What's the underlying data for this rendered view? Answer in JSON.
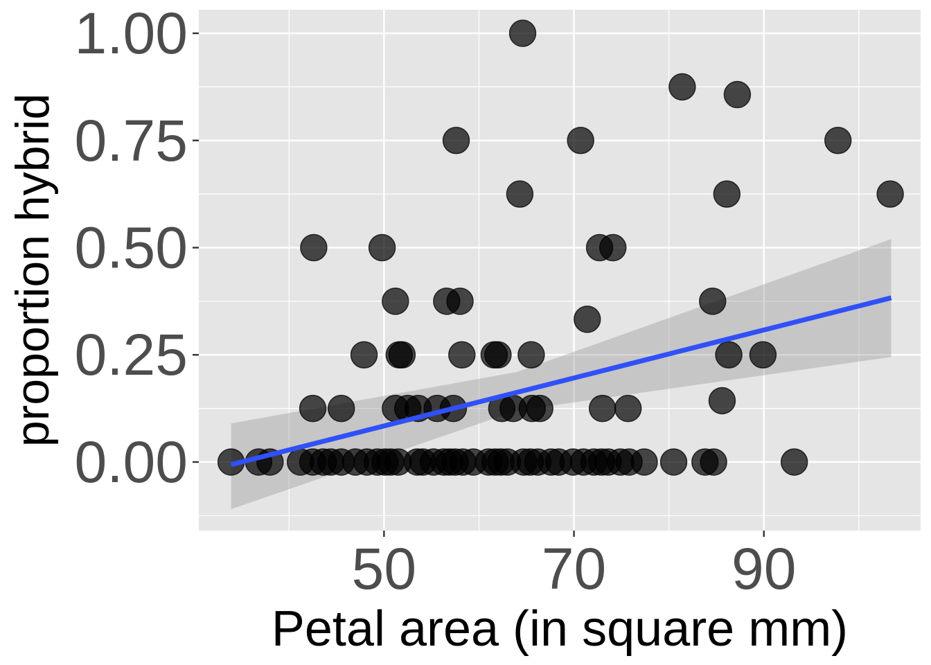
{
  "chart_data": {
    "type": "scatter",
    "title": "",
    "xlabel": "Petal area (in square mm)",
    "ylabel": "proportion hybrid",
    "xlim": [
      30.5,
      106.5
    ],
    "ylim": [
      -0.16,
      1.055
    ],
    "x_ticks": [
      50,
      70,
      90
    ],
    "x_tick_labels": [
      "50",
      "70",
      "90"
    ],
    "x_minor_ticks": [
      40,
      60,
      80,
      100
    ],
    "y_ticks": [
      0,
      0.25,
      0.5,
      0.75,
      1.0
    ],
    "y_tick_labels": [
      "0.00",
      "0.25",
      "0.50",
      "0.75",
      "1.00"
    ],
    "y_minor_ticks": [
      -0.125,
      0.125,
      0.375,
      0.625,
      0.875
    ],
    "grid": true,
    "panel_color": "#e5e5e5",
    "grid_color": "#ffffff",
    "point_color": "#000000",
    "point_opacity": 0.7,
    "fit_line_color": "#3050f8",
    "ribbon_color": "#999999",
    "fit": {
      "x": [
        33.9,
        103.4
      ],
      "y": [
        -0.006,
        0.383
      ],
      "ribbon": [
        {
          "x": 33.9,
          "low": -0.11,
          "high": 0.09
        },
        {
          "x": 64.0,
          "low": 0.12,
          "high": 0.21
        },
        {
          "x": 103.4,
          "low": 0.245,
          "high": 0.52
        }
      ]
    },
    "points": [
      {
        "x": 33.9,
        "y": 0
      },
      {
        "x": 36.8,
        "y": 0
      },
      {
        "x": 38.0,
        "y": 0
      },
      {
        "x": 41.2,
        "y": 0
      },
      {
        "x": 42.5,
        "y": 0
      },
      {
        "x": 43.6,
        "y": 0
      },
      {
        "x": 44.4,
        "y": 0
      },
      {
        "x": 45.5,
        "y": 0
      },
      {
        "x": 47.0,
        "y": 0
      },
      {
        "x": 48.2,
        "y": 0
      },
      {
        "x": 49.3,
        "y": 0
      },
      {
        "x": 50.1,
        "y": 0
      },
      {
        "x": 50.7,
        "y": 0
      },
      {
        "x": 51.5,
        "y": 0
      },
      {
        "x": 53.5,
        "y": 0
      },
      {
        "x": 54.1,
        "y": 0
      },
      {
        "x": 55.2,
        "y": 0
      },
      {
        "x": 56.3,
        "y": 0
      },
      {
        "x": 56.9,
        "y": 0
      },
      {
        "x": 57.5,
        "y": 0
      },
      {
        "x": 58.3,
        "y": 0
      },
      {
        "x": 59.4,
        "y": 0
      },
      {
        "x": 61.0,
        "y": 0
      },
      {
        "x": 61.7,
        "y": 0
      },
      {
        "x": 62.3,
        "y": 0
      },
      {
        "x": 63.0,
        "y": 0
      },
      {
        "x": 64.7,
        "y": 0
      },
      {
        "x": 65.4,
        "y": 0
      },
      {
        "x": 66.2,
        "y": 0
      },
      {
        "x": 67.6,
        "y": 0
      },
      {
        "x": 68.4,
        "y": 0
      },
      {
        "x": 69.9,
        "y": 0
      },
      {
        "x": 71.0,
        "y": 0
      },
      {
        "x": 72.1,
        "y": 0
      },
      {
        "x": 72.9,
        "y": 0
      },
      {
        "x": 73.6,
        "y": 0
      },
      {
        "x": 74.9,
        "y": 0
      },
      {
        "x": 75.8,
        "y": 0
      },
      {
        "x": 77.4,
        "y": 0
      },
      {
        "x": 80.5,
        "y": 0
      },
      {
        "x": 83.8,
        "y": 0
      },
      {
        "x": 84.7,
        "y": 0
      },
      {
        "x": 93.2,
        "y": 0
      },
      {
        "x": 42.5,
        "y": 0.125
      },
      {
        "x": 45.5,
        "y": 0.125
      },
      {
        "x": 51.2,
        "y": 0.125
      },
      {
        "x": 52.5,
        "y": 0.125
      },
      {
        "x": 53.6,
        "y": 0.125
      },
      {
        "x": 55.6,
        "y": 0.125
      },
      {
        "x": 57.3,
        "y": 0.125
      },
      {
        "x": 62.4,
        "y": 0.125
      },
      {
        "x": 63.6,
        "y": 0.125
      },
      {
        "x": 65.6,
        "y": 0.125
      },
      {
        "x": 66.4,
        "y": 0.125
      },
      {
        "x": 73.0,
        "y": 0.125
      },
      {
        "x": 75.7,
        "y": 0.125
      },
      {
        "x": 85.6,
        "y": 0.143
      },
      {
        "x": 47.9,
        "y": 0.25
      },
      {
        "x": 51.6,
        "y": 0.25
      },
      {
        "x": 51.9,
        "y": 0.25
      },
      {
        "x": 58.2,
        "y": 0.25
      },
      {
        "x": 61.6,
        "y": 0.25
      },
      {
        "x": 62.0,
        "y": 0.25
      },
      {
        "x": 65.5,
        "y": 0.25
      },
      {
        "x": 86.3,
        "y": 0.25
      },
      {
        "x": 89.9,
        "y": 0.25
      },
      {
        "x": 71.4,
        "y": 0.333
      },
      {
        "x": 51.2,
        "y": 0.375
      },
      {
        "x": 56.6,
        "y": 0.375
      },
      {
        "x": 58.0,
        "y": 0.375
      },
      {
        "x": 84.6,
        "y": 0.375
      },
      {
        "x": 42.6,
        "y": 0.5
      },
      {
        "x": 49.8,
        "y": 0.5
      },
      {
        "x": 72.7,
        "y": 0.5
      },
      {
        "x": 74.1,
        "y": 0.5
      },
      {
        "x": 64.3,
        "y": 0.625
      },
      {
        "x": 86.1,
        "y": 0.625
      },
      {
        "x": 103.3,
        "y": 0.625
      },
      {
        "x": 57.6,
        "y": 0.75
      },
      {
        "x": 70.7,
        "y": 0.75
      },
      {
        "x": 97.8,
        "y": 0.75
      },
      {
        "x": 81.4,
        "y": 0.875
      },
      {
        "x": 87.2,
        "y": 0.857
      },
      {
        "x": 64.6,
        "y": 1.0
      }
    ]
  }
}
